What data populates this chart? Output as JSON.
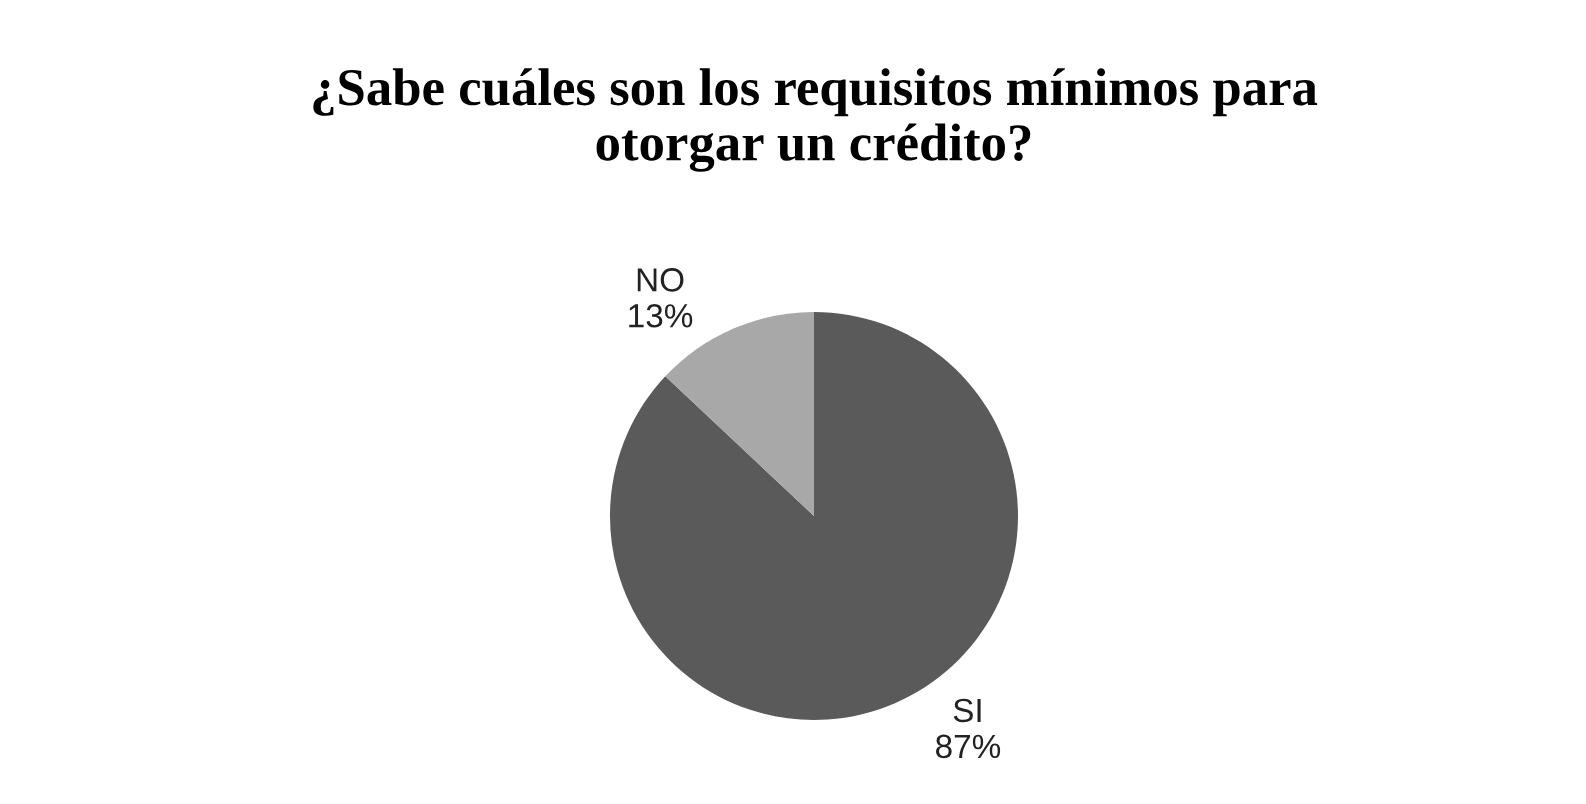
{
  "chart_data": {
    "type": "pie",
    "title": "¿Sabe cuáles son los requisitos mínimos para\notorgar un crédito?",
    "categories": [
      "SI",
      "NO"
    ],
    "values": [
      87,
      13
    ],
    "colors": [
      "#5a5a5a",
      "#a8a8a8"
    ],
    "value_labels": [
      "87%",
      "13%"
    ],
    "legend": false
  }
}
